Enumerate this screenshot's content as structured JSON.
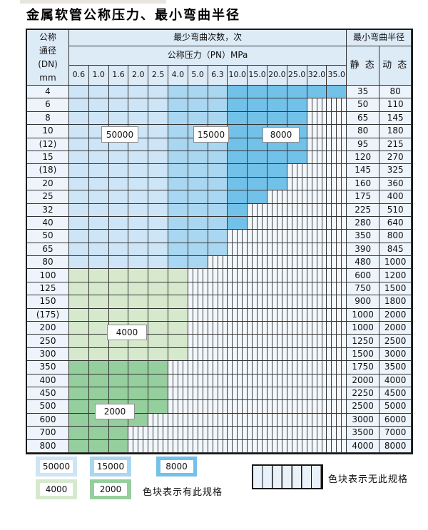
{
  "title": "金属软管公称压力、最小弯曲半径",
  "colors": {
    "c50000": "#cde5f6",
    "c15000": "#a9d6f0",
    "c8000": "#72c1e9",
    "c4000": "#d6e9cd",
    "c2000": "#95cf9d",
    "header_bg": "#ddebf7",
    "label_col_bg": "#edf4fb",
    "hatch_bg": "#f3f8fd",
    "grid": "#333333"
  },
  "table": {
    "header": {
      "dn_label": "公称\n通径\n(DN)\nmm",
      "bend_cycles_label": "最少弯曲次数，次",
      "pressure_label": "公称压力（PN）MPa",
      "pressure_columns": [
        "0.6",
        "1.0",
        "1.6",
        "2.0",
        "2.5",
        "4.0",
        "5.0",
        "6.3",
        "10.0",
        "15.0",
        "20.0",
        "25.0",
        "32.0",
        "35.0"
      ],
      "bend_radius_label": "最小弯曲半径",
      "static_label": "静 态",
      "dynamic_label": "动 态"
    },
    "rows": [
      {
        "dn": "4",
        "band": "blue",
        "colored": 14,
        "static": "35",
        "dynamic": "80"
      },
      {
        "dn": "6",
        "band": "blue",
        "colored": 12,
        "static": "50",
        "dynamic": "110"
      },
      {
        "dn": "8",
        "band": "blue",
        "colored": 12,
        "static": "65",
        "dynamic": "145"
      },
      {
        "dn": "10",
        "band": "blue",
        "colored": 12,
        "static": "80",
        "dynamic": "180"
      },
      {
        "dn": "(12)",
        "band": "blue",
        "colored": 12,
        "static": "95",
        "dynamic": "215"
      },
      {
        "dn": "15",
        "band": "blue",
        "colored": 12,
        "static": "120",
        "dynamic": "270"
      },
      {
        "dn": "(18)",
        "band": "blue",
        "colored": 11,
        "static": "145",
        "dynamic": "325"
      },
      {
        "dn": "20",
        "band": "blue",
        "colored": 11,
        "static": "160",
        "dynamic": "360"
      },
      {
        "dn": "25",
        "band": "blue",
        "colored": 10,
        "static": "175",
        "dynamic": "400"
      },
      {
        "dn": "32",
        "band": "blue",
        "colored": 9,
        "static": "225",
        "dynamic": "510"
      },
      {
        "dn": "40",
        "band": "blue",
        "colored": 9,
        "static": "280",
        "dynamic": "640"
      },
      {
        "dn": "50",
        "band": "blue",
        "colored": 8,
        "static": "350",
        "dynamic": "800"
      },
      {
        "dn": "65",
        "band": "blue",
        "colored": 8,
        "static": "390",
        "dynamic": "845"
      },
      {
        "dn": "80",
        "band": "blue",
        "colored": 7,
        "static": "480",
        "dynamic": "1000"
      },
      {
        "dn": "100",
        "band": "c4000",
        "colored": 6,
        "static": "600",
        "dynamic": "1200"
      },
      {
        "dn": "125",
        "band": "c4000",
        "colored": 6,
        "static": "750",
        "dynamic": "1500"
      },
      {
        "dn": "150",
        "band": "c4000",
        "colored": 6,
        "static": "900",
        "dynamic": "1800"
      },
      {
        "dn": "(175)",
        "band": "c4000",
        "colored": 6,
        "static": "1000",
        "dynamic": "2000"
      },
      {
        "dn": "200",
        "band": "c4000",
        "colored": 6,
        "static": "1000",
        "dynamic": "2000"
      },
      {
        "dn": "250",
        "band": "c4000",
        "colored": 6,
        "static": "1250",
        "dynamic": "2500"
      },
      {
        "dn": "300",
        "band": "c4000",
        "colored": 6,
        "static": "1500",
        "dynamic": "3000"
      },
      {
        "dn": "350",
        "band": "c2000",
        "colored": 5,
        "static": "1750",
        "dynamic": "3500"
      },
      {
        "dn": "400",
        "band": "c2000",
        "colored": 5,
        "static": "2000",
        "dynamic": "4000"
      },
      {
        "dn": "450",
        "band": "c2000",
        "colored": 5,
        "static": "2250",
        "dynamic": "4500"
      },
      {
        "dn": "500",
        "band": "c2000",
        "colored": 5,
        "static": "2500",
        "dynamic": "5000"
      },
      {
        "dn": "600",
        "band": "c2000",
        "colored": 4,
        "static": "3000",
        "dynamic": "6000"
      },
      {
        "dn": "700",
        "band": "c2000",
        "colored": 3,
        "static": "3500",
        "dynamic": "7000"
      },
      {
        "dn": "800",
        "band": "c2000",
        "colored": 3,
        "static": "4000",
        "dynamic": "8000"
      }
    ]
  },
  "region_labels": {
    "l50000": "50000",
    "l15000": "15000",
    "l8000": "8000",
    "l4000": "4000",
    "l2000": "2000"
  },
  "legend": {
    "swatches": [
      {
        "value": "50000"
      },
      {
        "value": "15000"
      },
      {
        "value": "8000"
      },
      {
        "value": "4000"
      },
      {
        "value": "2000"
      }
    ],
    "has_spec_text": "色块表示有此规格",
    "no_spec_text": "色块表示无此规格"
  }
}
